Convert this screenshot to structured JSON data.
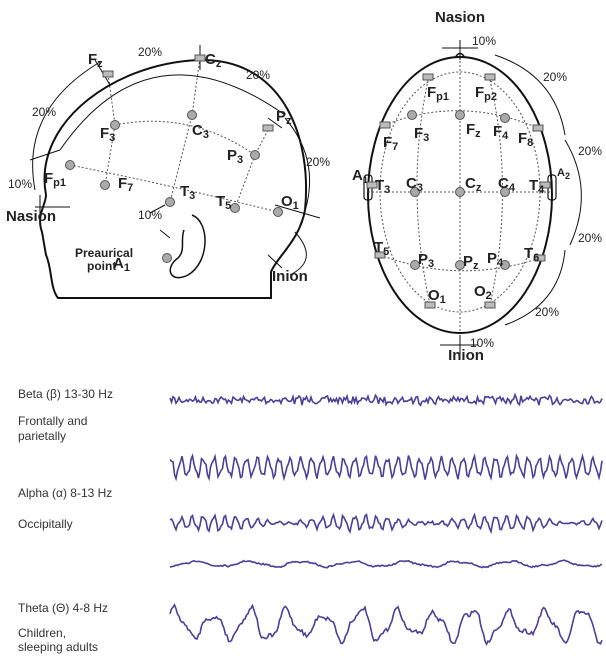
{
  "side_view": {
    "nasion": "Nasion",
    "inion": "Inion",
    "preauricular": [
      "Preaurical",
      "point"
    ],
    "percentages": [
      "20%",
      "20%",
      "20%",
      "20%",
      "10%",
      "10%"
    ],
    "electrodes": [
      {
        "name": "F",
        "index": "z"
      },
      {
        "name": "C",
        "index": "z"
      },
      {
        "name": "P",
        "index": "z"
      },
      {
        "name": "F",
        "index": "3"
      },
      {
        "name": "C",
        "index": "3"
      },
      {
        "name": "P",
        "index": "3"
      },
      {
        "name": "F",
        "index": "p1"
      },
      {
        "name": "F",
        "index": "7"
      },
      {
        "name": "T",
        "index": "3"
      },
      {
        "name": "T",
        "index": "5"
      },
      {
        "name": "O",
        "index": "1"
      },
      {
        "name": "A",
        "index": "1"
      }
    ]
  },
  "top_view": {
    "nasion": "Nasion",
    "inion": "Inion",
    "percentages": [
      "10%",
      "20%",
      "20%",
      "20%",
      "20%",
      "10%"
    ],
    "electrodes": [
      {
        "name": "F",
        "index": "p1"
      },
      {
        "name": "F",
        "index": "p2"
      },
      {
        "name": "F",
        "index": "7"
      },
      {
        "name": "F",
        "index": "3"
      },
      {
        "name": "F",
        "index": "z"
      },
      {
        "name": "F",
        "index": "4"
      },
      {
        "name": "F",
        "index": "8"
      },
      {
        "name": "A",
        "index": "1"
      },
      {
        "name": "T",
        "index": "3"
      },
      {
        "name": "C",
        "index": "3"
      },
      {
        "name": "C",
        "index": "z"
      },
      {
        "name": "C",
        "index": "4"
      },
      {
        "name": "T",
        "index": "4"
      },
      {
        "name": "A",
        "index": "2"
      },
      {
        "name": "T",
        "index": "5"
      },
      {
        "name": "P",
        "index": "3"
      },
      {
        "name": "P",
        "index": "z"
      },
      {
        "name": "P",
        "index": "4"
      },
      {
        "name": "T",
        "index": "6"
      },
      {
        "name": "O",
        "index": "1"
      },
      {
        "name": "O",
        "index": "2"
      }
    ]
  },
  "rhythms": [
    {
      "name": "Beta (β)  13-30 Hz",
      "location": [
        "Frontally and",
        "parietally"
      ]
    },
    {
      "name": "Alpha (α)  8-13 Hz",
      "location": [
        "Occipitally"
      ]
    },
    {
      "name": "Theta (Θ)   4-8 Hz",
      "location": [
        "Children,",
        "sleeping adults"
      ]
    }
  ]
}
